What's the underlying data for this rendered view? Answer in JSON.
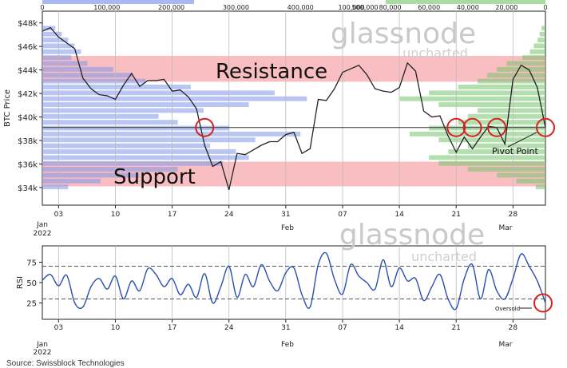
{
  "chart_data": [
    {
      "type": "line",
      "ylabel": "BTC Price",
      "y_ticks": [
        34000,
        36000,
        38000,
        40000,
        42000,
        44000,
        46000,
        48000
      ],
      "y_tick_labels": [
        "$34k",
        "$36k",
        "$38k",
        "$40k",
        "$42k",
        "$44k",
        "$46k",
        "$48k"
      ],
      "ylim": [
        32500,
        49000
      ],
      "x_ticks": [
        "03",
        "10",
        "17",
        "24",
        "31",
        "07",
        "14",
        "21",
        "28"
      ],
      "x_month_labels": [
        {
          "tick": "03",
          "label": "Jan\n2022"
        },
        {
          "tick": "31",
          "label": "Feb",
          "at": "07"
        },
        {
          "tick": "28",
          "label": "Mar",
          "at": "28+"
        }
      ],
      "xlim": [
        "2022-01-01",
        "2022-03-04"
      ],
      "series": [
        {
          "color": "#222222",
          "values": [
            [
              "2022-01-01",
              47300
            ],
            [
              "2022-01-02",
              47600
            ],
            [
              "2022-01-03",
              46800
            ],
            [
              "2022-01-04",
              46300
            ],
            [
              "2022-01-05",
              45800
            ],
            [
              "2022-01-06",
              43300
            ],
            [
              "2022-01-07",
              42400
            ],
            [
              "2022-01-08",
              41900
            ],
            [
              "2022-01-09",
              41800
            ],
            [
              "2022-01-10",
              41500
            ],
            [
              "2022-01-11",
              42700
            ],
            [
              "2022-01-12",
              43700
            ],
            [
              "2022-01-13",
              42600
            ],
            [
              "2022-01-14",
              43100
            ],
            [
              "2022-01-15",
              43100
            ],
            [
              "2022-01-16",
              43200
            ],
            [
              "2022-01-17",
              42200
            ],
            [
              "2022-01-18",
              42300
            ],
            [
              "2022-01-19",
              41700
            ],
            [
              "2022-01-20",
              40700
            ],
            [
              "2022-01-21",
              37600
            ],
            [
              "2022-01-22",
              35800
            ],
            [
              "2022-01-23",
              36200
            ],
            [
              "2022-01-24",
              33800
            ],
            [
              "2022-01-25",
              36900
            ],
            [
              "2022-01-26",
              36800
            ],
            [
              "2022-01-27",
              37200
            ],
            [
              "2022-01-28",
              37600
            ],
            [
              "2022-01-29",
              37900
            ],
            [
              "2022-01-30",
              37900
            ],
            [
              "2022-01-31",
              38500
            ],
            [
              "2022-02-01",
              38700
            ],
            [
              "2022-02-02",
              36900
            ],
            [
              "2022-02-03",
              37300
            ],
            [
              "2022-02-04",
              41500
            ],
            [
              "2022-02-05",
              41400
            ],
            [
              "2022-02-06",
              42400
            ],
            [
              "2022-02-07",
              43800
            ],
            [
              "2022-02-08",
              44100
            ],
            [
              "2022-02-09",
              44400
            ],
            [
              "2022-02-10",
              43600
            ],
            [
              "2022-02-11",
              42400
            ],
            [
              "2022-02-12",
              42200
            ],
            [
              "2022-02-13",
              42100
            ],
            [
              "2022-02-14",
              42500
            ],
            [
              "2022-02-15",
              44600
            ],
            [
              "2022-02-16",
              43900
            ],
            [
              "2022-02-17",
              40500
            ],
            [
              "2022-02-18",
              40000
            ],
            [
              "2022-02-19",
              40100
            ],
            [
              "2022-02-20",
              38400
            ],
            [
              "2022-02-21",
              37000
            ],
            [
              "2022-02-22",
              38300
            ],
            [
              "2022-02-23",
              37300
            ],
            [
              "2022-02-24",
              38300
            ],
            [
              "2022-02-25",
              39200
            ],
            [
              "2022-02-26",
              39100
            ],
            [
              "2022-02-27",
              37700
            ],
            [
              "2022-02-28",
              43200
            ],
            [
              "2022-03-01",
              44400
            ],
            [
              "2022-03-02",
              44000
            ],
            [
              "2022-03-03",
              42500
            ],
            [
              "2022-03-04",
              39100
            ]
          ]
        }
      ],
      "volume_profile": {
        "price_levels": [
          34000,
          34500,
          35000,
          35500,
          36000,
          36500,
          37000,
          37500,
          38000,
          38500,
          39000,
          39500,
          40000,
          40500,
          41000,
          41500,
          42000,
          42500,
          43000,
          43500,
          44000,
          44500,
          45000,
          45500,
          46000,
          46500,
          47000,
          47500
        ],
        "left_buy_volume": [
          40000,
          90000,
          150000,
          210000,
          280000,
          320000,
          300000,
          260000,
          330000,
          400000,
          290000,
          210000,
          180000,
          250000,
          320000,
          410000,
          360000,
          230000,
          160000,
          140000,
          110000,
          70000,
          45000,
          60000,
          50000,
          40000,
          30000,
          20000
        ],
        "right_sell_volume": [
          5000,
          15000,
          25000,
          40000,
          55000,
          60000,
          50000,
          40000,
          55000,
          70000,
          60000,
          45000,
          40000,
          35000,
          55000,
          75000,
          60000,
          45000,
          35000,
          30000,
          25000,
          20000,
          12000,
          8000,
          6000,
          4000,
          3000,
          2000
        ],
        "top_axis_left": [
          "0",
          "100,000",
          "200,000",
          "300,000",
          "400,000",
          "500,000"
        ],
        "top_axis_right": [
          "100,000",
          "80,000",
          "60,000",
          "40,000",
          "20,000",
          "0"
        ]
      },
      "annotations": {
        "resistance_label": "Resistance",
        "support_label": "Support",
        "resistance_band": [
          43000,
          45200
        ],
        "support_band": [
          34100,
          36200
        ],
        "pivot_label": "Pivot Point",
        "pivot_price": 39100,
        "circle_dates": [
          "2022-01-21",
          "2022-02-21",
          "2022-02-23",
          "2022-02-26",
          "2022-03-04"
        ]
      },
      "watermark": {
        "brand": "glassnode",
        "sub": "uncharted"
      }
    },
    {
      "type": "line",
      "ylabel": "RSI",
      "y_ticks": [
        25,
        50,
        75
      ],
      "y_tick_labels": [
        "25",
        "50",
        "75"
      ],
      "ylim": [
        5,
        95
      ],
      "reference_lines": [
        30,
        70
      ],
      "xlim": [
        "2022-01-01",
        "2022-03-04"
      ],
      "series": [
        {
          "color": "#2a4fb0",
          "values": [
            [
              "2022-01-01",
              53
            ],
            [
              "2022-01-02",
              60
            ],
            [
              "2022-01-03",
              46
            ],
            [
              "2022-01-04",
              59
            ],
            [
              "2022-01-05",
              25
            ],
            [
              "2022-01-06",
              20
            ],
            [
              "2022-01-07",
              45
            ],
            [
              "2022-01-08",
              55
            ],
            [
              "2022-01-09",
              42
            ],
            [
              "2022-01-10",
              58
            ],
            [
              "2022-01-11",
              30
            ],
            [
              "2022-01-12",
              52
            ],
            [
              "2022-01-13",
              40
            ],
            [
              "2022-01-14",
              67
            ],
            [
              "2022-01-15",
              60
            ],
            [
              "2022-01-16",
              45
            ],
            [
              "2022-01-17",
              55
            ],
            [
              "2022-01-18",
              35
            ],
            [
              "2022-01-19",
              48
            ],
            [
              "2022-01-20",
              32
            ],
            [
              "2022-01-21",
              61
            ],
            [
              "2022-01-22",
              25
            ],
            [
              "2022-01-23",
              45
            ],
            [
              "2022-01-24",
              70
            ],
            [
              "2022-01-25",
              32
            ],
            [
              "2022-01-26",
              60
            ],
            [
              "2022-01-27",
              45
            ],
            [
              "2022-01-28",
              72
            ],
            [
              "2022-01-29",
              52
            ],
            [
              "2022-01-30",
              40
            ],
            [
              "2022-01-31",
              62
            ],
            [
              "2022-02-01",
              68
            ],
            [
              "2022-02-02",
              35
            ],
            [
              "2022-02-03",
              20
            ],
            [
              "2022-02-04",
              72
            ],
            [
              "2022-02-05",
              86
            ],
            [
              "2022-02-06",
              54
            ],
            [
              "2022-02-07",
              36
            ],
            [
              "2022-02-08",
              72
            ],
            [
              "2022-02-09",
              58
            ],
            [
              "2022-02-10",
              50
            ],
            [
              "2022-02-11",
              42
            ],
            [
              "2022-02-12",
              78
            ],
            [
              "2022-02-13",
              45
            ],
            [
              "2022-02-14",
              68
            ],
            [
              "2022-02-15",
              52
            ],
            [
              "2022-02-16",
              55
            ],
            [
              "2022-02-17",
              28
            ],
            [
              "2022-02-18",
              45
            ],
            [
              "2022-02-19",
              60
            ],
            [
              "2022-02-20",
              30
            ],
            [
              "2022-02-21",
              18
            ],
            [
              "2022-02-22",
              55
            ],
            [
              "2022-02-23",
              72
            ],
            [
              "2022-02-24",
              30
            ],
            [
              "2022-02-25",
              66
            ],
            [
              "2022-02-26",
              40
            ],
            [
              "2022-02-27",
              30
            ],
            [
              "2022-02-28",
              55
            ],
            [
              "2022-03-01",
              85
            ],
            [
              "2022-03-02",
              70
            ],
            [
              "2022-03-03",
              52
            ],
            [
              "2022-03-04",
              25
            ]
          ]
        }
      ],
      "annotations": {
        "oversold_label": "Oversold",
        "circle_date": "2022-03-04"
      },
      "watermark": {
        "brand": "glassnode",
        "sub": "uncharted"
      }
    }
  ],
  "source": "Source: Swissblock Technologies"
}
